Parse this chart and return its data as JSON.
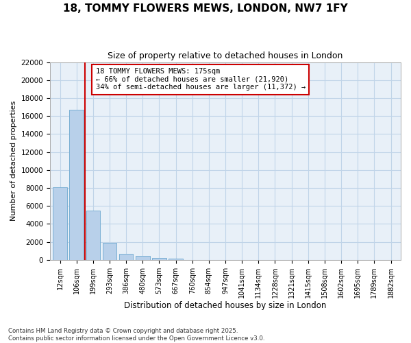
{
  "title": "18, TOMMY FLOWERS MEWS, LONDON, NW7 1FY",
  "subtitle": "Size of property relative to detached houses in London",
  "xlabel": "Distribution of detached houses by size in London",
  "ylabel": "Number of detached properties",
  "categories": [
    "12sqm",
    "106sqm",
    "199sqm",
    "293sqm",
    "386sqm",
    "480sqm",
    "573sqm",
    "667sqm",
    "760sqm",
    "854sqm",
    "947sqm",
    "1041sqm",
    "1134sqm",
    "1228sqm",
    "1321sqm",
    "1415sqm",
    "1508sqm",
    "1602sqm",
    "1695sqm",
    "1789sqm",
    "1882sqm"
  ],
  "values": [
    8100,
    16700,
    5500,
    1900,
    700,
    400,
    200,
    150,
    0,
    0,
    0,
    0,
    0,
    0,
    0,
    0,
    0,
    0,
    0,
    0,
    0
  ],
  "bar_color": "#b8d0ea",
  "bar_edge_color": "#7aafd4",
  "vline_x": 1.5,
  "vline_color": "#cc0000",
  "annotation_text": "18 TOMMY FLOWERS MEWS: 175sqm\n← 66% of detached houses are smaller (21,920)\n34% of semi-detached houses are larger (11,372) →",
  "annotation_box_color": "#ffffff",
  "annotation_box_edge": "#cc0000",
  "ylim": [
    0,
    22000
  ],
  "yticks": [
    0,
    2000,
    4000,
    6000,
    8000,
    10000,
    12000,
    14000,
    16000,
    18000,
    20000,
    22000
  ],
  "grid_color": "#c0d4e8",
  "plot_bg_color": "#e8f0f8",
  "fig_bg_color": "#ffffff",
  "footer_line1": "Contains HM Land Registry data © Crown copyright and database right 2025.",
  "footer_line2": "Contains public sector information licensed under the Open Government Licence v3.0.",
  "title_fontsize": 11,
  "subtitle_fontsize": 9
}
